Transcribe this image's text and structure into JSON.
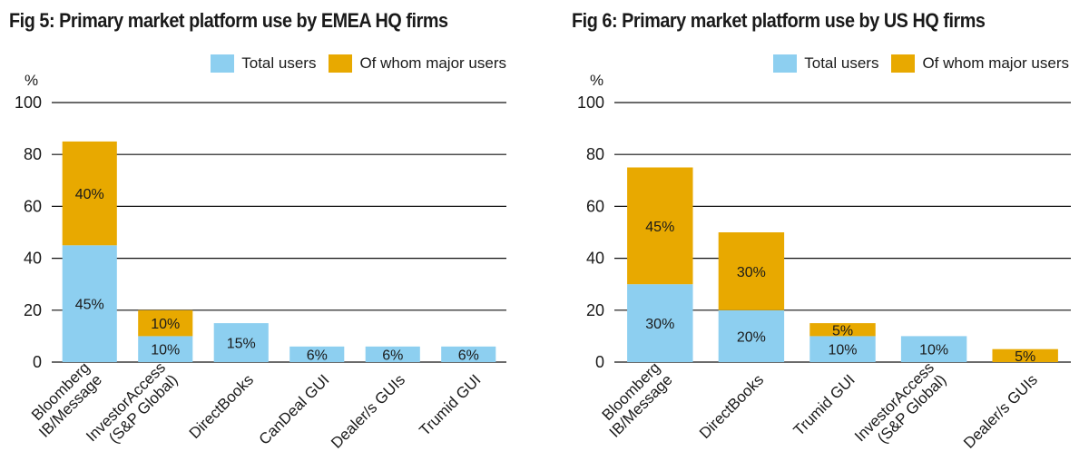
{
  "colors": {
    "total": "#8dcff0",
    "major": "#e8a900"
  },
  "legend": {
    "total_label": "Total users",
    "major_label": "Of whom major users"
  },
  "chart_data": [
    {
      "type": "bar",
      "title": "Fig 5: Primary market platform use by EMEA HQ firms",
      "ylabel": "%",
      "ylim": [
        0,
        100
      ],
      "yticks": [
        0,
        20,
        40,
        60,
        80,
        100
      ],
      "categories": [
        "Bloomberg\nIB/Message",
        "InvestorAccess\n(S&P Global)",
        "DirectBooks",
        "CanDeal GUI",
        "Dealer/s GUIs",
        "Trumid GUI"
      ],
      "series": [
        {
          "name": "Total users",
          "values": [
            45,
            10,
            15,
            6,
            6,
            6
          ],
          "labels": [
            "45%",
            "10%",
            "15%",
            "6%",
            "6%",
            "6%"
          ]
        },
        {
          "name": "Of whom major users",
          "values": [
            40,
            10,
            0,
            0,
            0,
            0
          ],
          "labels": [
            "40%",
            "10%",
            "",
            "",
            "",
            ""
          ]
        }
      ],
      "grid": true
    },
    {
      "type": "bar",
      "title": "Fig 6: Primary market platform use by US HQ firms",
      "ylabel": "%",
      "ylim": [
        0,
        100
      ],
      "yticks": [
        0,
        20,
        40,
        60,
        80,
        100
      ],
      "categories": [
        "Bloomberg\nIB/Message",
        "DirectBooks",
        "Trumid GUI",
        "InvestorAccess\n(S&P Global)",
        "Dealer/s GUIs"
      ],
      "series": [
        {
          "name": "Total users",
          "values": [
            30,
            20,
            10,
            10,
            0
          ],
          "labels": [
            "30%",
            "20%",
            "10%",
            "10%",
            ""
          ]
        },
        {
          "name": "Of whom major users",
          "values": [
            45,
            30,
            5,
            0,
            5
          ],
          "labels": [
            "45%",
            "30%",
            "5%",
            "",
            "5%"
          ]
        }
      ],
      "grid": true
    }
  ]
}
